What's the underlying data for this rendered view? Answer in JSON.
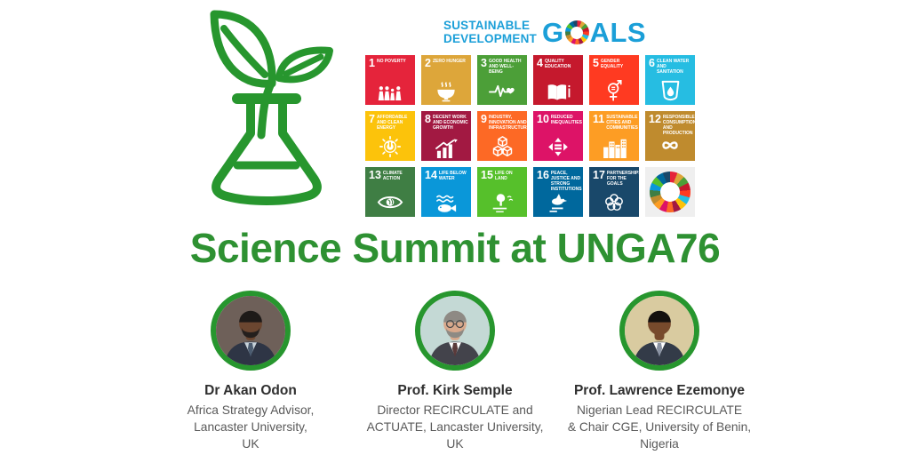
{
  "page": {
    "background": "#ffffff"
  },
  "header": {
    "flask_icon_color": "#27962e",
    "sdg_logo": {
      "line1": "SUSTAINABLE",
      "line2": "DEVELOPMENT",
      "word": "GOALS",
      "goals_before_o": "G",
      "goals_after_o": "ALS",
      "color": "#1b9fd8"
    }
  },
  "sdg": {
    "wheel_tile_bg": "#efefef",
    "wheel_colors": [
      "#e5243b",
      "#dda63a",
      "#4c9f38",
      "#c5192d",
      "#ff3a21",
      "#26bde2",
      "#fcc30b",
      "#a21942",
      "#fd6925",
      "#dd1367",
      "#fd9d24",
      "#bf8b2e",
      "#3f7e44",
      "#0a97d9",
      "#56c02b",
      "#00689d",
      "#19486a"
    ],
    "goals": [
      {
        "num": "1",
        "label": "NO POVERTY",
        "color": "#e5243b",
        "icon": "people"
      },
      {
        "num": "2",
        "label": "ZERO HUNGER",
        "color": "#dda63a",
        "icon": "bowl"
      },
      {
        "num": "3",
        "label": "GOOD HEALTH AND WELL-BEING",
        "color": "#4c9f38",
        "icon": "heartbeat"
      },
      {
        "num": "4",
        "label": "QUALITY EDUCATION",
        "color": "#c5192d",
        "icon": "book"
      },
      {
        "num": "5",
        "label": "GENDER EQUALITY",
        "color": "#ff3a21",
        "icon": "gender"
      },
      {
        "num": "6",
        "label": "CLEAN WATER AND SANITATION",
        "color": "#26bde2",
        "icon": "water"
      },
      {
        "num": "7",
        "label": "AFFORDABLE AND CLEAN ENERGY",
        "color": "#fcc30b",
        "icon": "energy"
      },
      {
        "num": "8",
        "label": "DECENT WORK AND ECONOMIC GROWTH",
        "color": "#a21942",
        "icon": "growth"
      },
      {
        "num": "9",
        "label": "INDUSTRY, INNOVATION AND INFRASTRUCTURE",
        "color": "#fd6925",
        "icon": "cubes"
      },
      {
        "num": "10",
        "label": "REDUCED INEQUALITIES",
        "color": "#dd1367",
        "icon": "equality"
      },
      {
        "num": "11",
        "label": "SUSTAINABLE CITIES AND COMMUNITIES",
        "color": "#fd9d24",
        "icon": "city"
      },
      {
        "num": "12",
        "label": "RESPONSIBLE CONSUMPTION AND PRODUCTION",
        "color": "#bf8b2e",
        "icon": "infinity"
      },
      {
        "num": "13",
        "label": "CLIMATE ACTION",
        "color": "#3f7e44",
        "icon": "eye"
      },
      {
        "num": "14",
        "label": "LIFE BELOW WATER",
        "color": "#0a97d9",
        "icon": "fish"
      },
      {
        "num": "15",
        "label": "LIFE ON LAND",
        "color": "#56c02b",
        "icon": "tree"
      },
      {
        "num": "16",
        "label": "PEACE, JUSTICE AND STRONG INSTITUTIONS",
        "color": "#00689d",
        "icon": "dove"
      },
      {
        "num": "17",
        "label": "PARTNERSHIPS FOR THE GOALS",
        "color": "#19486a",
        "icon": "rings"
      }
    ]
  },
  "title": {
    "text": "Science Summit at UNGA76",
    "color": "#2e9132"
  },
  "speakers": [
    {
      "name": "Dr Akan Odon",
      "lines": [
        "Africa Strategy Advisor,",
        "Lancaster University,",
        "UK"
      ],
      "photo": {
        "bg": "#6e6059",
        "suit": "#2e3545",
        "shirt": "#c7d2da",
        "tie": "#4a5b70",
        "skin": "#6b4630",
        "hair": "#1e1a18",
        "beard": true,
        "beard_color": "#241f1d",
        "glasses": false
      }
    },
    {
      "name": "Prof. Kirk Semple",
      "lines": [
        "Director RECIRCULATE and",
        "ACTUATE, Lancaster University,",
        "UK"
      ],
      "photo": {
        "bg": "#c4d9d5",
        "suit": "#43434b",
        "shirt": "#ffffff",
        "tie": "#5a3a3a",
        "skin": "#d9a98c",
        "hair": "#8e8a84",
        "beard": true,
        "beard_color": "#8e8a84",
        "glasses": true
      }
    },
    {
      "name": "Prof. Lawrence Ezemonye",
      "lines": [
        "Nigerian Lead RECIRCULATE",
        "& Chair CGE, University of Benin,",
        "Nigeria"
      ],
      "photo": {
        "bg": "#d9cba0",
        "suit": "#333b48",
        "shirt": "#ffffff",
        "tie": "#8a93a3",
        "skin": "#774a2c",
        "hair": "#14100e",
        "beard": false,
        "beard_color": "#14100e",
        "glasses": false
      }
    }
  ]
}
